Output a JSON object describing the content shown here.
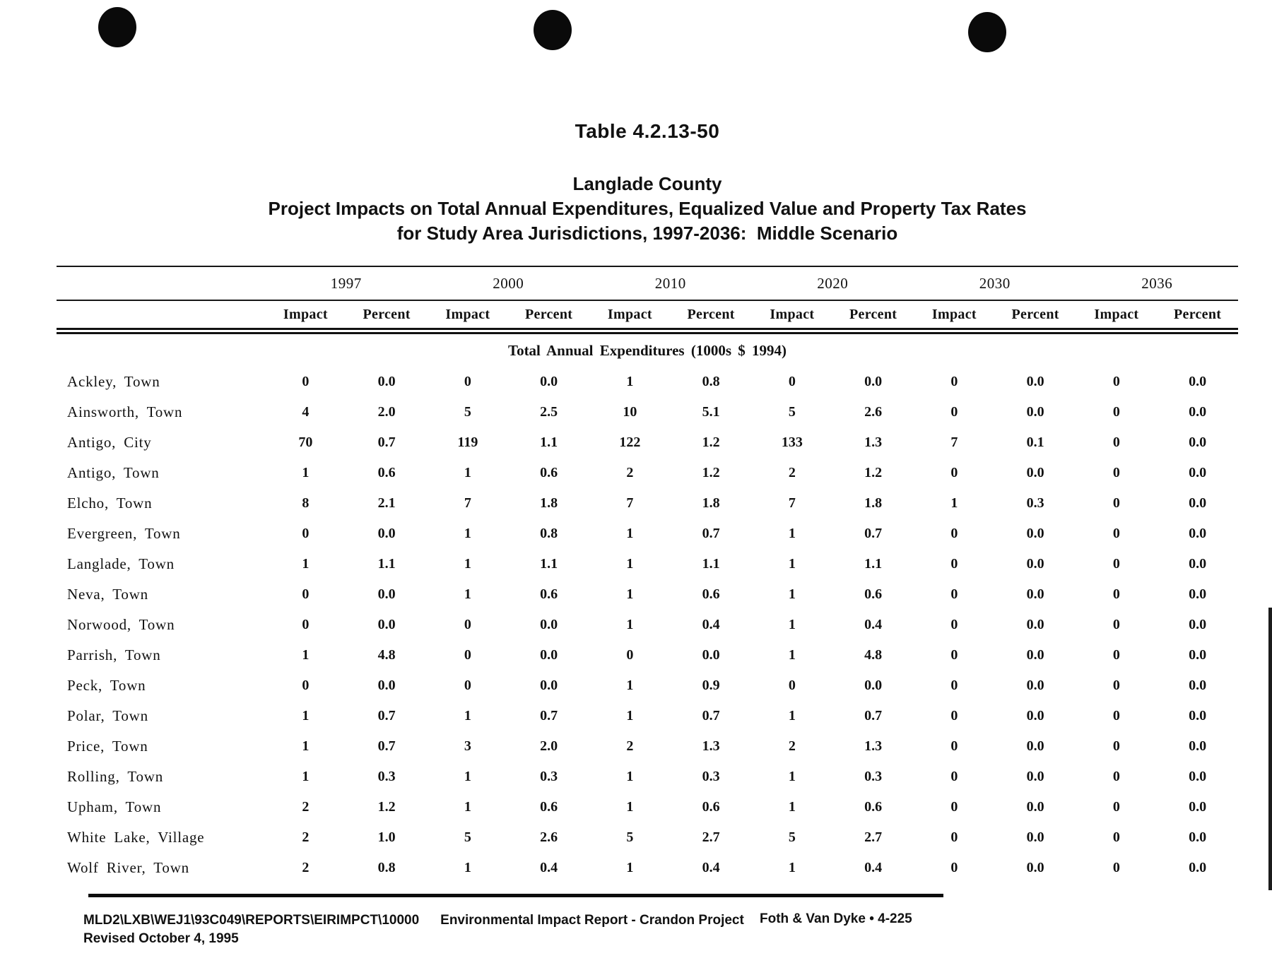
{
  "title": {
    "table_number": "Table 4.2.13-50",
    "line1": "Langlade County",
    "line2": "Project Impacts on Total Annual Expenditures, Equalized Value and Property Tax Rates",
    "line3": "for Study Area Jurisdictions, 1997-2036:  Middle Scenario"
  },
  "table": {
    "years": [
      "1997",
      "2000",
      "2010",
      "2020",
      "2030",
      "2036"
    ],
    "sub_columns": [
      "Impact",
      "Percent"
    ],
    "section_header": "Total Annual Expenditures (1000s $ 1994)",
    "rows": [
      {
        "jurisdiction": "Ackley, Town",
        "values": [
          "0",
          "0.0",
          "0",
          "0.0",
          "1",
          "0.8",
          "0",
          "0.0",
          "0",
          "0.0",
          "0",
          "0.0"
        ]
      },
      {
        "jurisdiction": "Ainsworth, Town",
        "values": [
          "4",
          "2.0",
          "5",
          "2.5",
          "10",
          "5.1",
          "5",
          "2.6",
          "0",
          "0.0",
          "0",
          "0.0"
        ]
      },
      {
        "jurisdiction": "Antigo, City",
        "values": [
          "70",
          "0.7",
          "119",
          "1.1",
          "122",
          "1.2",
          "133",
          "1.3",
          "7",
          "0.1",
          "0",
          "0.0"
        ]
      },
      {
        "jurisdiction": "Antigo, Town",
        "values": [
          "1",
          "0.6",
          "1",
          "0.6",
          "2",
          "1.2",
          "2",
          "1.2",
          "0",
          "0.0",
          "0",
          "0.0"
        ]
      },
      {
        "jurisdiction": "Elcho, Town",
        "values": [
          "8",
          "2.1",
          "7",
          "1.8",
          "7",
          "1.8",
          "7",
          "1.8",
          "1",
          "0.3",
          "0",
          "0.0"
        ]
      },
      {
        "jurisdiction": "Evergreen, Town",
        "values": [
          "0",
          "0.0",
          "1",
          "0.8",
          "1",
          "0.7",
          "1",
          "0.7",
          "0",
          "0.0",
          "0",
          "0.0"
        ]
      },
      {
        "jurisdiction": "Langlade, Town",
        "values": [
          "1",
          "1.1",
          "1",
          "1.1",
          "1",
          "1.1",
          "1",
          "1.1",
          "0",
          "0.0",
          "0",
          "0.0"
        ]
      },
      {
        "jurisdiction": "Neva, Town",
        "values": [
          "0",
          "0.0",
          "1",
          "0.6",
          "1",
          "0.6",
          "1",
          "0.6",
          "0",
          "0.0",
          "0",
          "0.0"
        ]
      },
      {
        "jurisdiction": "Norwood, Town",
        "values": [
          "0",
          "0.0",
          "0",
          "0.0",
          "1",
          "0.4",
          "1",
          "0.4",
          "0",
          "0.0",
          "0",
          "0.0"
        ]
      },
      {
        "jurisdiction": "Parrish, Town",
        "values": [
          "1",
          "4.8",
          "0",
          "0.0",
          "0",
          "0.0",
          "1",
          "4.8",
          "0",
          "0.0",
          "0",
          "0.0"
        ]
      },
      {
        "jurisdiction": "Peck, Town",
        "values": [
          "0",
          "0.0",
          "0",
          "0.0",
          "1",
          "0.9",
          "0",
          "0.0",
          "0",
          "0.0",
          "0",
          "0.0"
        ]
      },
      {
        "jurisdiction": "Polar, Town",
        "values": [
          "1",
          "0.7",
          "1",
          "0.7",
          "1",
          "0.7",
          "1",
          "0.7",
          "0",
          "0.0",
          "0",
          "0.0"
        ]
      },
      {
        "jurisdiction": "Price, Town",
        "values": [
          "1",
          "0.7",
          "3",
          "2.0",
          "2",
          "1.3",
          "2",
          "1.3",
          "0",
          "0.0",
          "0",
          "0.0"
        ]
      },
      {
        "jurisdiction": "Rolling, Town",
        "values": [
          "1",
          "0.3",
          "1",
          "0.3",
          "1",
          "0.3",
          "1",
          "0.3",
          "0",
          "0.0",
          "0",
          "0.0"
        ]
      },
      {
        "jurisdiction": "Upham, Town",
        "values": [
          "2",
          "1.2",
          "1",
          "0.6",
          "1",
          "0.6",
          "1",
          "0.6",
          "0",
          "0.0",
          "0",
          "0.0"
        ]
      },
      {
        "jurisdiction": "White Lake, Village",
        "values": [
          "2",
          "1.0",
          "5",
          "2.6",
          "5",
          "2.7",
          "5",
          "2.7",
          "0",
          "0.0",
          "0",
          "0.0"
        ]
      },
      {
        "jurisdiction": "Wolf River, Town",
        "values": [
          "2",
          "0.8",
          "1",
          "0.4",
          "1",
          "0.4",
          "1",
          "0.4",
          "0",
          "0.0",
          "0",
          "0.0"
        ]
      }
    ]
  },
  "footer": {
    "path": "MLD2\\LXB\\WEJ1\\93C049\\REPORTS\\EIRIMPCT\\10000",
    "report": "Environmental Impact Report - Crandon Project",
    "revised": "Revised October 4, 1995",
    "page_ref": "Foth & Van Dyke • 4-225"
  }
}
